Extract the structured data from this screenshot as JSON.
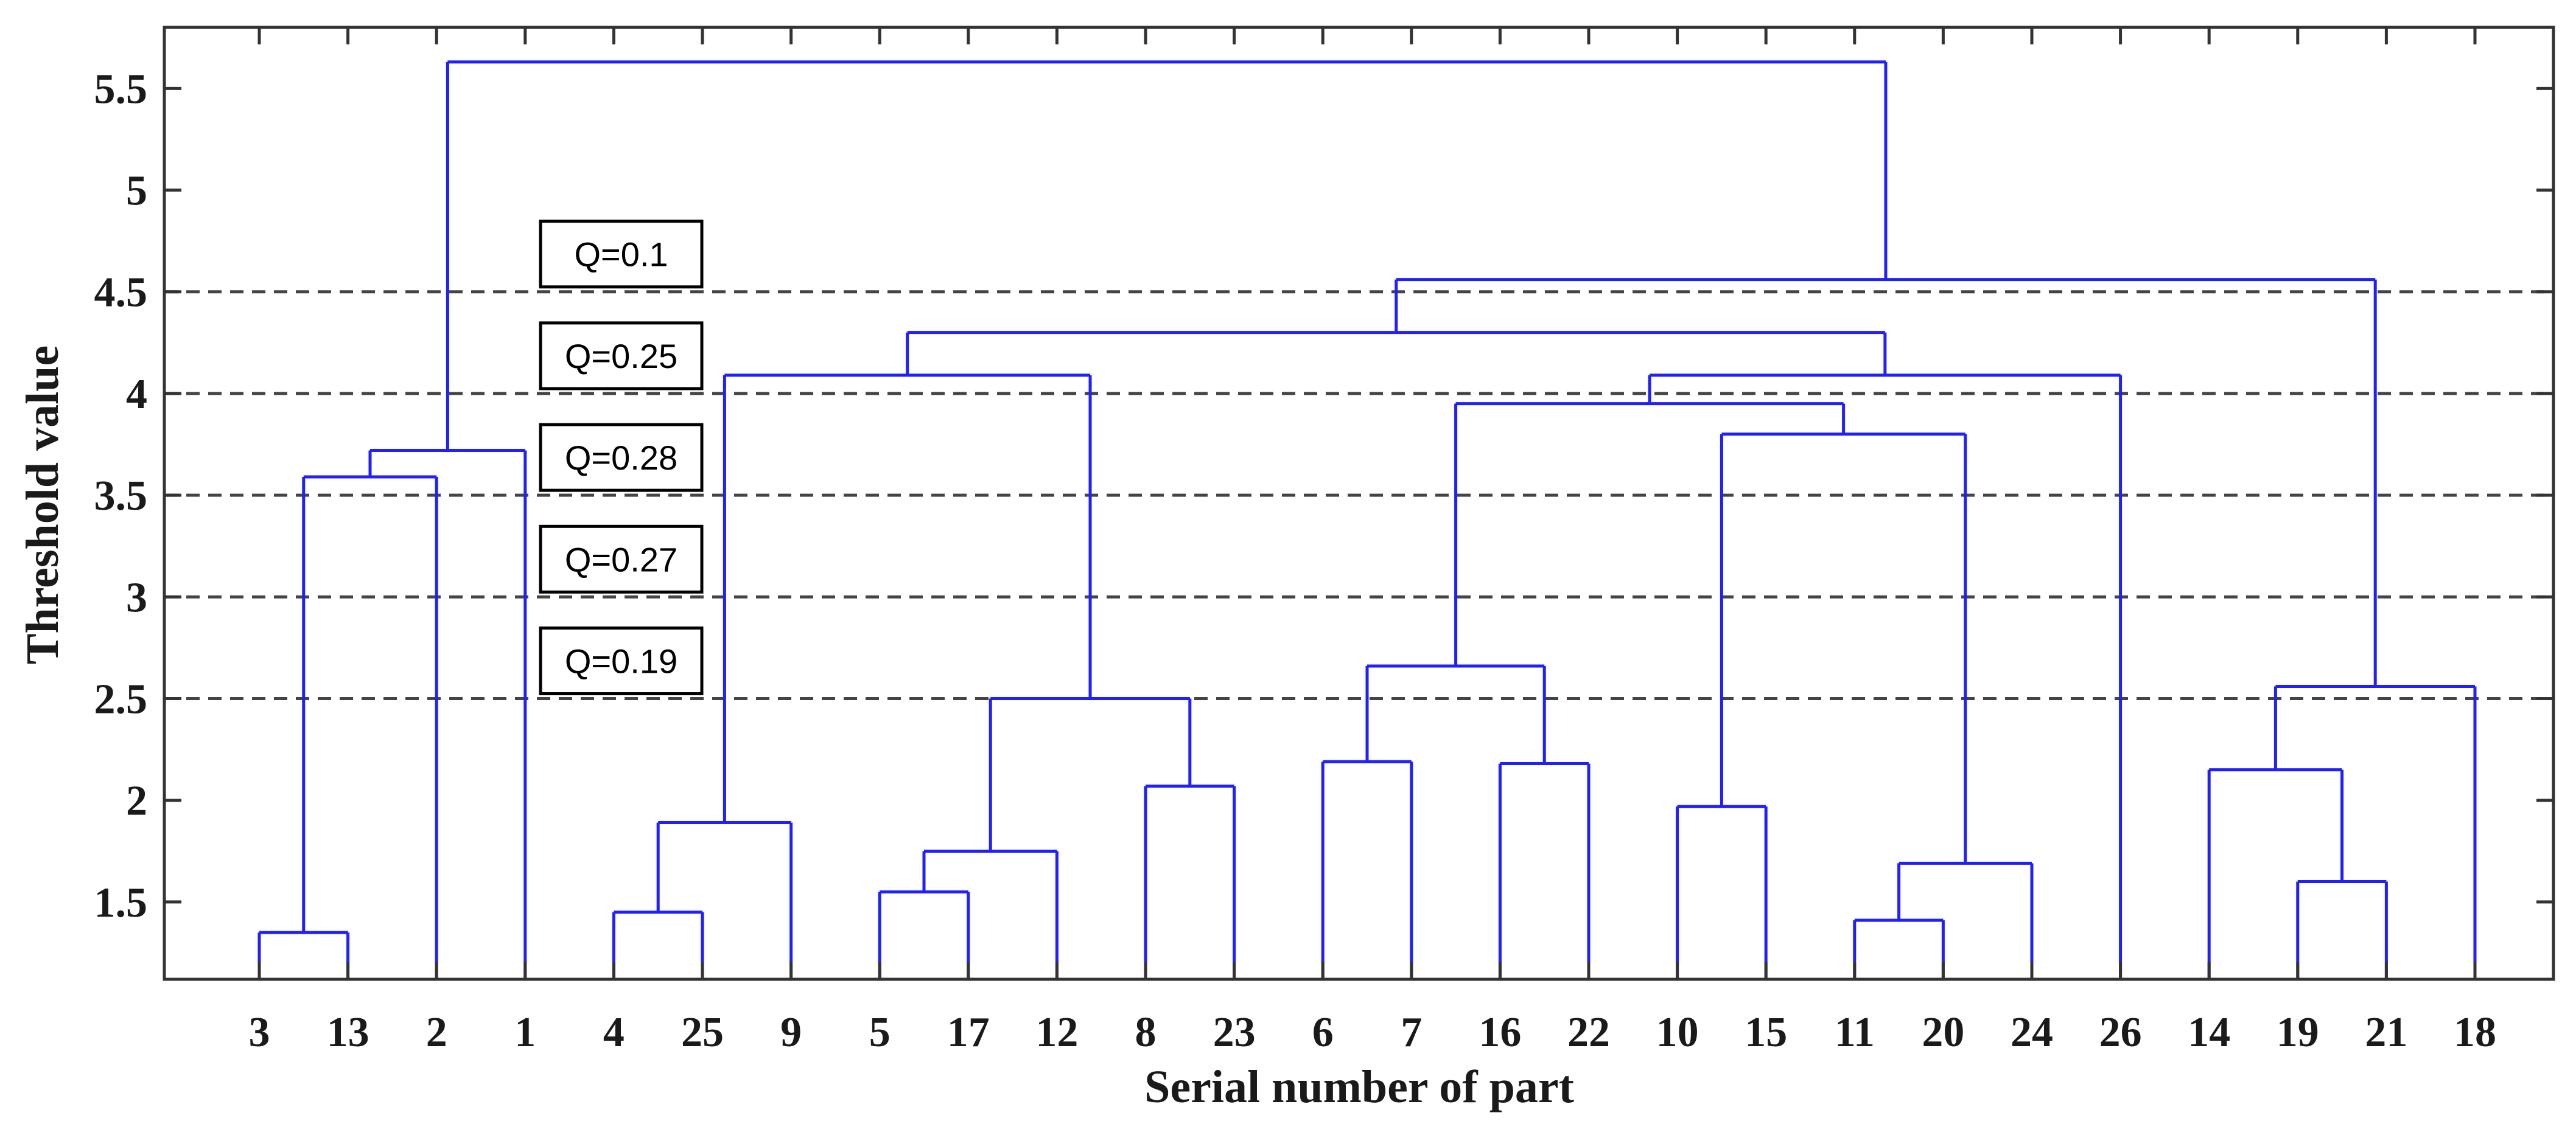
{
  "chart_data": {
    "type": "dendrogram",
    "xlabel": "Serial number of part",
    "ylabel": "Threshold value",
    "ylim": [
      1.12,
      5.8
    ],
    "yticks": [
      1.5,
      2,
      2.5,
      3,
      3.5,
      4,
      4.5,
      5,
      5.5
    ],
    "ytick_labels": [
      "1.5",
      "2",
      "2.5",
      "3",
      "3.5",
      "4",
      "4.5",
      "5",
      "5.5"
    ],
    "leaf_order": [
      "3",
      "13",
      "2",
      "1",
      "4",
      "25",
      "9",
      "5",
      "17",
      "12",
      "8",
      "23",
      "6",
      "7",
      "16",
      "22",
      "10",
      "15",
      "11",
      "20",
      "24",
      "26",
      "14",
      "19",
      "21",
      "18"
    ],
    "merges": [
      {
        "a": "3",
        "b": "13",
        "height": 1.35
      },
      {
        "a": "11",
        "b": "20",
        "height": 1.41
      },
      {
        "a": "4",
        "b": "25",
        "height": 1.45
      },
      {
        "a": "5",
        "b": "17",
        "height": 1.55
      },
      {
        "a": "19",
        "b": "21",
        "height": 1.6
      },
      {
        "a": "11,20",
        "b": "24",
        "height": 1.69
      },
      {
        "a": "5,17",
        "b": "12",
        "height": 1.75
      },
      {
        "a": "4,25",
        "b": "9",
        "height": 1.89
      },
      {
        "a": "10",
        "b": "15",
        "height": 1.97
      },
      {
        "a": "8",
        "b": "23",
        "height": 2.07
      },
      {
        "a": "14",
        "b": "19,21",
        "height": 2.15
      },
      {
        "a": "16",
        "b": "22",
        "height": 2.18
      },
      {
        "a": "6",
        "b": "7",
        "height": 2.19
      },
      {
        "a": "5,17,12",
        "b": "8,23",
        "height": 2.5
      },
      {
        "a": "14,19,21",
        "b": "18",
        "height": 2.56
      },
      {
        "a": "6,7",
        "b": "16,22",
        "height": 2.66
      },
      {
        "a": "3,13",
        "b": "2",
        "height": 3.59
      },
      {
        "a": "3,13,2",
        "b": "1",
        "height": 3.72
      },
      {
        "a": "10,15",
        "b": "11,20,24",
        "height": 3.8
      },
      {
        "a": "6,7,16,22",
        "b": "10,15,11,20,24",
        "height": 3.95
      },
      {
        "a": "4,25,9",
        "b": "5,17,12,8,23",
        "height": 4.09
      },
      {
        "a": "6,7,16,22,10,15,11,20,24",
        "b": "26",
        "height": 4.09
      },
      {
        "a": "4,25,9,5,17,12,8,23",
        "b": "6,7,16,22,10,15,11,20,24,26",
        "height": 4.3
      },
      {
        "a": "4,25,9,5,17,12,8,23,6,7,16,22,10,15,11,20,24,26",
        "b": "14,19,21,18",
        "height": 4.56
      },
      {
        "a": "3,13,2,1",
        "b": "4,25,9,5,17,12,8,23,6,7,16,22,10,15,11,20,24,26,14,19,21,18",
        "height": 5.63
      }
    ],
    "threshold_lines": [
      {
        "value": 4.5,
        "label": "Q=0.1"
      },
      {
        "value": 4.0,
        "label": "Q=0.25"
      },
      {
        "value": 3.5,
        "label": "Q=0.28"
      },
      {
        "value": 3.0,
        "label": "Q=0.27"
      },
      {
        "value": 2.5,
        "label": "Q=0.19"
      }
    ],
    "colors": {
      "branches": "#1f1fff",
      "threshold_lines": "#444444",
      "axes": "#333333"
    },
    "grid": false
  }
}
